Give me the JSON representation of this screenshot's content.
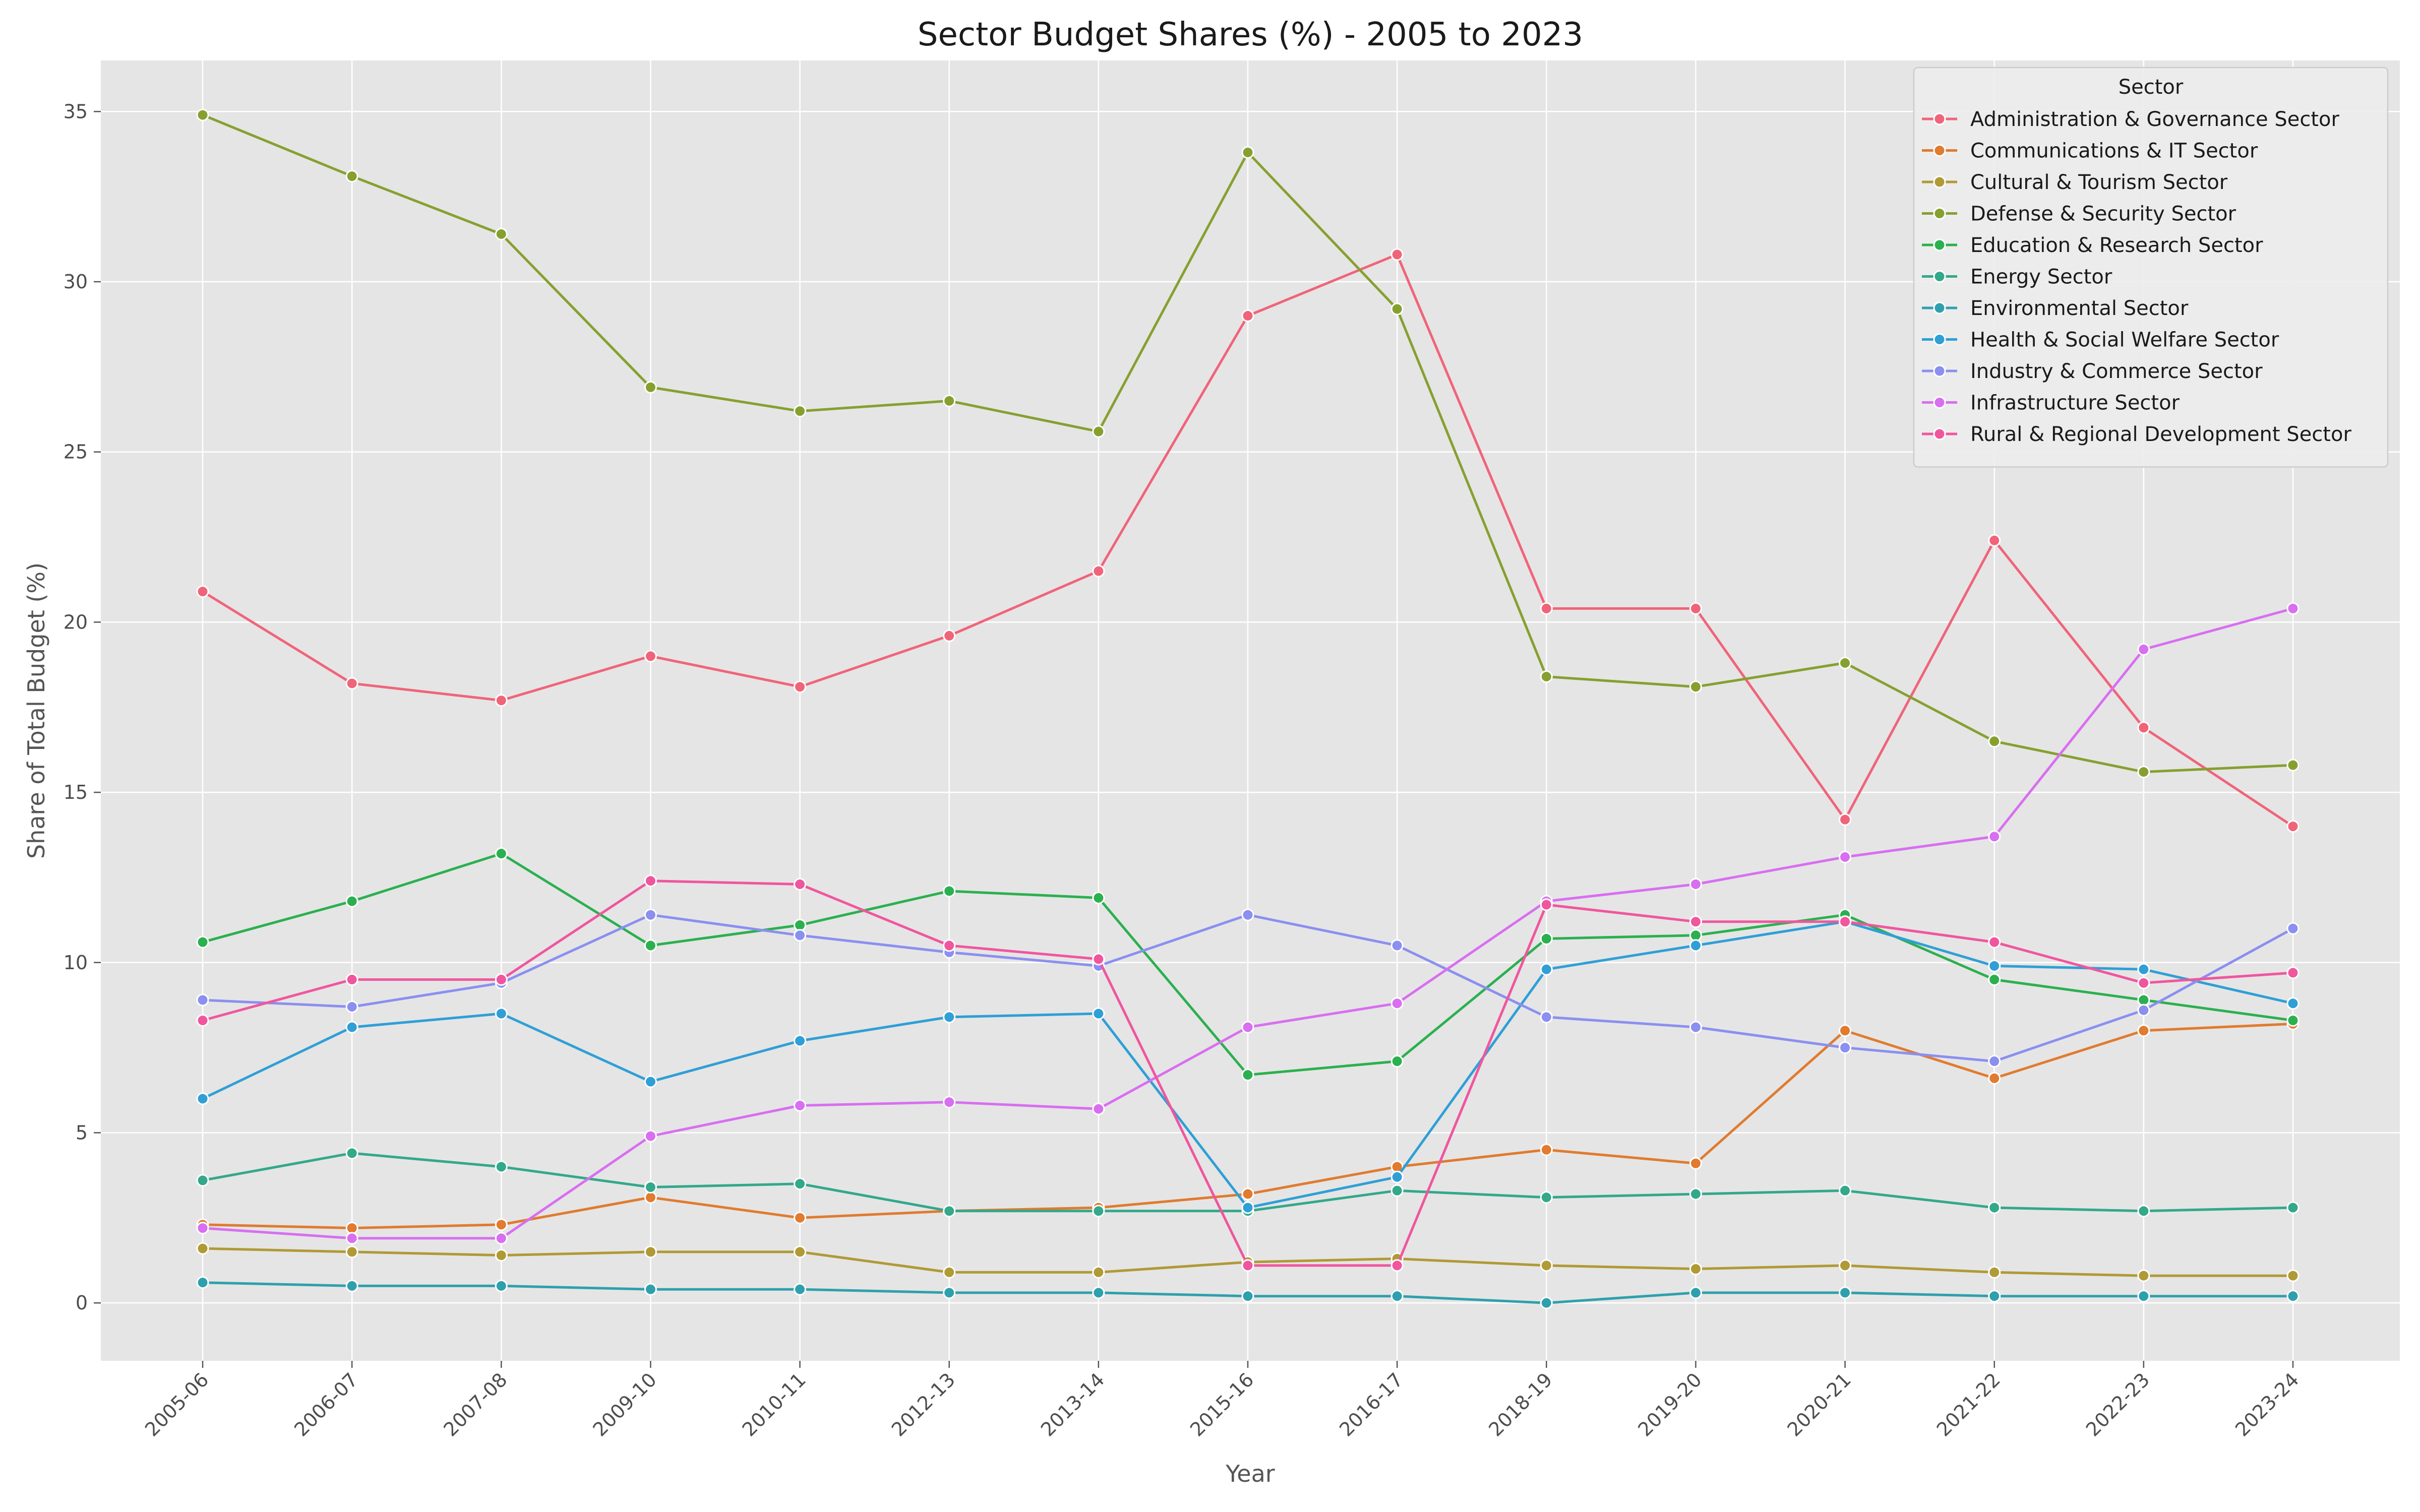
{
  "chart_data": {
    "type": "line",
    "title": "Sector Budget Shares (%) - 2005 to 2023",
    "xlabel": "Year",
    "ylabel": "Share of Total Budget (%)",
    "ylim": [
      -1.7,
      36.5
    ],
    "yticks": [
      0,
      5,
      10,
      15,
      20,
      25,
      30,
      35
    ],
    "grid": true,
    "legend_title": "Sector",
    "legend_position": "top-right",
    "categories": [
      "2005-06",
      "2006-07",
      "2007-08",
      "2009-10",
      "2010-11",
      "2012-13",
      "2013-14",
      "2015-16",
      "2016-17",
      "2018-19",
      "2019-20",
      "2020-21",
      "2021-22",
      "2022-23",
      "2023-24"
    ],
    "series": [
      {
        "name": "Administration & Governance Sector",
        "color": "#f0647a",
        "values": [
          20.9,
          18.2,
          17.7,
          19.0,
          18.1,
          19.6,
          21.5,
          29.0,
          30.8,
          20.4,
          20.4,
          14.2,
          22.4,
          16.9,
          14.0
        ]
      },
      {
        "name": "Communications & IT Sector",
        "color": "#e07b2f",
        "values": [
          2.3,
          2.2,
          2.3,
          3.1,
          2.5,
          2.7,
          2.8,
          3.2,
          4.0,
          4.5,
          4.1,
          8.0,
          6.6,
          8.0,
          8.2
        ]
      },
      {
        "name": "Cultural & Tourism Sector",
        "color": "#b09a36",
        "values": [
          1.6,
          1.5,
          1.4,
          1.5,
          1.5,
          0.9,
          0.9,
          1.2,
          1.3,
          1.1,
          1.0,
          1.1,
          0.9,
          0.8,
          0.8
        ]
      },
      {
        "name": "Defense & Security Sector",
        "color": "#86a030",
        "values": [
          34.9,
          33.1,
          31.4,
          26.9,
          26.2,
          26.5,
          25.6,
          33.8,
          29.2,
          18.4,
          18.1,
          18.8,
          16.5,
          15.6,
          15.8
        ]
      },
      {
        "name": "Education & Research Sector",
        "color": "#2bb04f",
        "values": [
          10.6,
          11.8,
          13.2,
          10.5,
          11.1,
          12.1,
          11.9,
          6.7,
          7.1,
          10.7,
          10.8,
          11.4,
          9.5,
          8.9,
          8.3
        ]
      },
      {
        "name": "Energy Sector",
        "color": "#33a88a",
        "values": [
          3.6,
          4.4,
          4.0,
          3.4,
          3.5,
          2.7,
          2.7,
          2.7,
          3.3,
          3.1,
          3.2,
          3.3,
          2.8,
          2.7,
          2.8
        ]
      },
      {
        "name": "Environmental Sector",
        "color": "#2ea0ad",
        "values": [
          0.6,
          0.5,
          0.5,
          0.4,
          0.4,
          0.3,
          0.3,
          0.2,
          0.2,
          0.0,
          0.3,
          0.3,
          0.2,
          0.2,
          0.2
        ]
      },
      {
        "name": "Health & Social Welfare Sector",
        "color": "#2f9fd6",
        "values": [
          6.0,
          8.1,
          8.5,
          6.5,
          7.7,
          8.4,
          8.5,
          2.8,
          3.7,
          9.8,
          10.5,
          11.2,
          9.9,
          9.8,
          8.8
        ]
      },
      {
        "name": "Industry & Commerce Sector",
        "color": "#8b8ff0",
        "values": [
          8.9,
          8.7,
          9.4,
          11.4,
          10.8,
          10.3,
          9.9,
          11.4,
          10.5,
          8.4,
          8.1,
          7.5,
          7.1,
          8.6,
          11.0
        ]
      },
      {
        "name": "Infrastructure Sector",
        "color": "#d86ff0",
        "values": [
          2.2,
          1.9,
          1.9,
          4.9,
          5.8,
          5.9,
          5.7,
          8.1,
          8.8,
          11.8,
          12.3,
          13.1,
          13.7,
          19.2,
          20.4
        ]
      },
      {
        "name": "Rural & Regional Development Sector",
        "color": "#f0569e",
        "values": [
          8.3,
          9.5,
          9.5,
          12.4,
          12.3,
          10.5,
          10.1,
          1.1,
          1.1,
          11.7,
          11.2,
          11.2,
          10.6,
          9.4,
          9.7
        ]
      }
    ]
  }
}
